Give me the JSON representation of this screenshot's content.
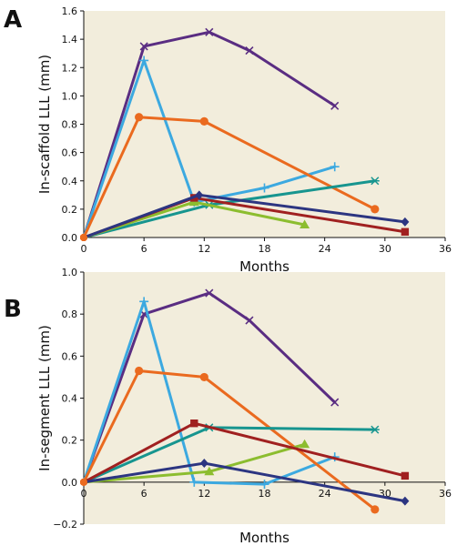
{
  "chart_data": [
    {
      "type": "line",
      "panel_label": "A",
      "xlabel": "Months",
      "ylabel": "In-scaffold LLL (mm)",
      "xlim": [
        0,
        36
      ],
      "ylim": [
        0,
        1.6
      ],
      "xticks": [
        0,
        6,
        12,
        18,
        24,
        30,
        36
      ],
      "yticks": [
        0.0,
        0.2,
        0.4,
        0.6,
        0.8,
        1.0,
        1.2,
        1.4,
        1.6
      ],
      "xtick_labels": [
        "0",
        "6",
        "12",
        "18",
        "24",
        "30",
        "36"
      ],
      "ytick_labels": [
        "0.0",
        "0.2",
        "0.4",
        "0.6",
        "0.8",
        "1.0",
        "1.2",
        "1.4",
        "1.6"
      ],
      "background": "#f2eddc",
      "legend": "none",
      "series": [
        {
          "color": "#5a2d82",
          "marker": "x",
          "x": [
            0,
            6,
            12.5,
            16.5,
            25
          ],
          "y": [
            0.0,
            1.35,
            1.45,
            1.32,
            0.93
          ]
        },
        {
          "color": "#3ca9e0",
          "marker": "plus",
          "x": [
            0,
            6,
            11,
            18,
            25
          ],
          "y": [
            0.0,
            1.25,
            0.25,
            0.35,
            0.5
          ]
        },
        {
          "color": "#ea6a1f",
          "marker": "circle",
          "x": [
            0,
            5.5,
            12,
            29
          ],
          "y": [
            0.0,
            0.85,
            0.82,
            0.2
          ]
        },
        {
          "color": "#17958f",
          "marker": "asterisk",
          "x": [
            0,
            12.5,
            29
          ],
          "y": [
            0.0,
            0.23,
            0.4
          ]
        },
        {
          "color": "#8cbd2f",
          "marker": "triangle",
          "x": [
            0,
            11,
            22
          ],
          "y": [
            0.0,
            0.25,
            0.09
          ]
        },
        {
          "color": "#a02020",
          "marker": "square",
          "x": [
            0,
            11,
            32
          ],
          "y": [
            0.0,
            0.28,
            0.04
          ]
        },
        {
          "color": "#2c3581",
          "marker": "diamond",
          "x": [
            0,
            11.5,
            32
          ],
          "y": [
            0.0,
            0.3,
            0.11
          ]
        }
      ]
    },
    {
      "type": "line",
      "panel_label": "B",
      "xlabel": "Months",
      "ylabel": "In-segment LLL (mm)",
      "xlim": [
        0,
        36
      ],
      "ylim": [
        -0.2,
        1.0
      ],
      "xticks": [
        0,
        6,
        12,
        18,
        24,
        30,
        36
      ],
      "yticks": [
        -0.2,
        0.0,
        0.2,
        0.4,
        0.6,
        0.8,
        1.0
      ],
      "xtick_labels": [
        "0",
        "6",
        "12",
        "18",
        "24",
        "30",
        "36"
      ],
      "ytick_labels": [
        "−0.2",
        "0.0",
        "0.2",
        "0.4",
        "0.6",
        "0.8",
        "1.0"
      ],
      "background": "#f2eddc",
      "legend": "none",
      "series": [
        {
          "color": "#5a2d82",
          "marker": "x",
          "x": [
            0,
            6,
            12.5,
            16.5,
            25
          ],
          "y": [
            0.0,
            0.8,
            0.9,
            0.77,
            0.38
          ]
        },
        {
          "color": "#3ca9e0",
          "marker": "plus",
          "x": [
            0,
            6,
            11,
            18,
            25
          ],
          "y": [
            0.0,
            0.86,
            0.0,
            -0.01,
            0.12
          ]
        },
        {
          "color": "#ea6a1f",
          "marker": "circle",
          "x": [
            0,
            5.5,
            12,
            29
          ],
          "y": [
            0.0,
            0.53,
            0.5,
            -0.13
          ]
        },
        {
          "color": "#17958f",
          "marker": "asterisk",
          "x": [
            0,
            12.5,
            29
          ],
          "y": [
            0.0,
            0.26,
            0.25
          ]
        },
        {
          "color": "#8cbd2f",
          "marker": "triangle",
          "x": [
            0,
            12.5,
            22
          ],
          "y": [
            0.0,
            0.05,
            0.18
          ]
        },
        {
          "color": "#a02020",
          "marker": "square",
          "x": [
            0,
            11,
            32
          ],
          "y": [
            0.0,
            0.28,
            0.03
          ]
        },
        {
          "color": "#2c3581",
          "marker": "diamond",
          "x": [
            0,
            12,
            32
          ],
          "y": [
            0.0,
            0.09,
            -0.09
          ]
        }
      ]
    }
  ]
}
